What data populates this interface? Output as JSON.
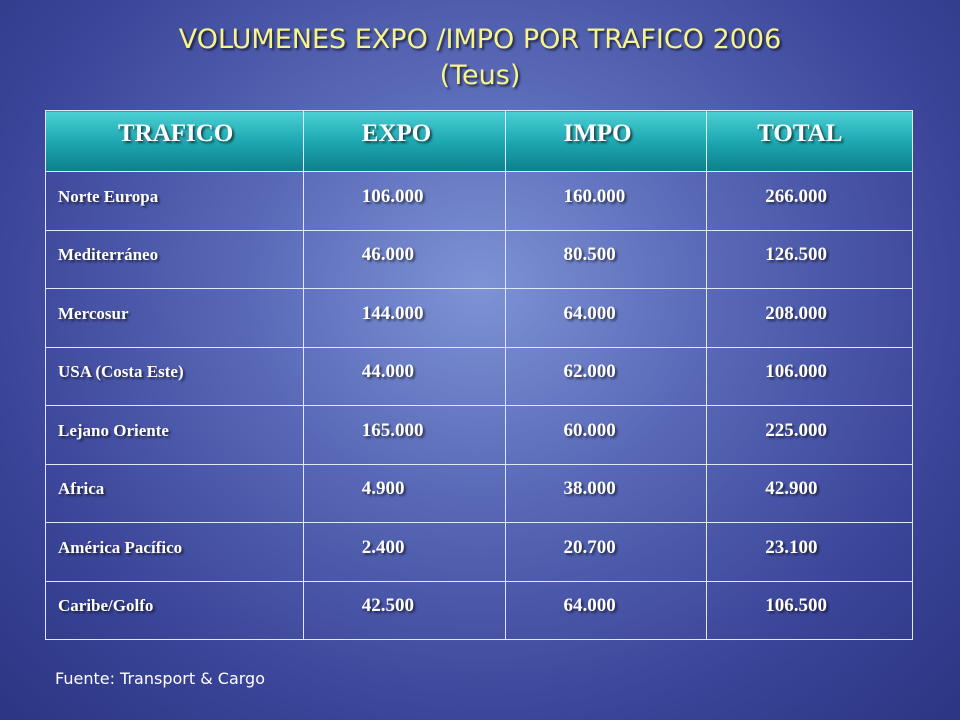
{
  "title": "VOLUMENES EXPO /IMPO POR TRAFICO 2006",
  "subtitle": "(Teus)",
  "table": {
    "headers": [
      "TRAFICO",
      "EXPO",
      "IMPO",
      "TOTAL"
    ],
    "rows": [
      [
        "Norte Europa",
        "106.000",
        "160.000",
        "266.000"
      ],
      [
        "Mediterráneo",
        "46.000",
        "80.500",
        "126.500"
      ],
      [
        "Mercosur",
        "144.000",
        "64.000",
        "208.000"
      ],
      [
        "USA (Costa Este)",
        "44.000",
        "62.000",
        "106.000"
      ],
      [
        "Lejano Oriente",
        "165.000",
        "60.000",
        "225.000"
      ],
      [
        "Africa",
        "4.900",
        "38.000",
        "42.900"
      ],
      [
        "América Pacífico",
        "2.400",
        "20.700",
        "23.100"
      ],
      [
        "Caribe/Golfo",
        "42.500",
        "64.000",
        "106.500"
      ]
    ]
  },
  "footer": "Fuente: Transport & Cargo",
  "colors": {
    "title": "#f7f48c",
    "header": "#1aa4ae",
    "text": "#ffffff"
  }
}
